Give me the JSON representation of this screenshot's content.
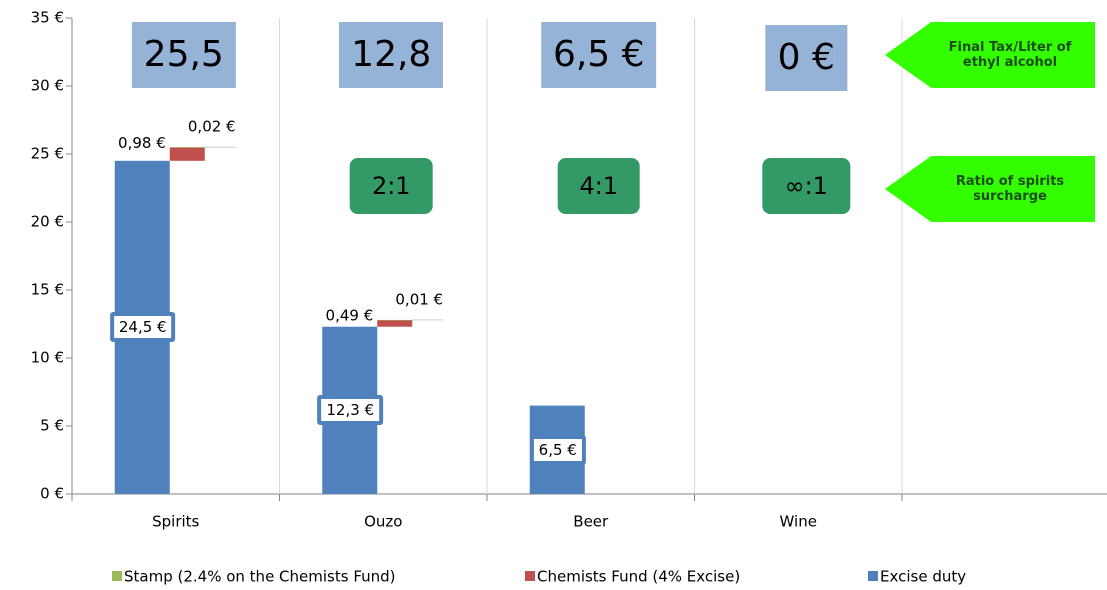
{
  "chart_data": {
    "type": "bar",
    "categories": [
      "Spirits",
      "Ouzo",
      "Beer",
      "Wine",
      null
    ],
    "series": [
      {
        "name": "Stamp (2.4% on the Chemists Fund)",
        "color": "#9bbb59",
        "values": [
          0.02,
          0.01,
          null,
          null,
          null
        ],
        "value_labels": [
          "0,02 €",
          "0,01 €",
          null,
          null,
          null
        ]
      },
      {
        "name": "Chemists Fund (4% Excise)",
        "color": "#c0504d",
        "values": [
          0.98,
          0.49,
          null,
          null,
          null
        ],
        "value_labels": [
          "0,98 €",
          "0,49 €",
          null,
          null,
          null
        ]
      },
      {
        "name": "Excise duty",
        "color": "#4f81bd",
        "values": [
          24.5,
          12.3,
          6.5,
          0,
          null
        ],
        "value_labels": [
          "24,5 €",
          "12,3 €",
          "6,5 €",
          null,
          null
        ]
      }
    ],
    "ylim": [
      0,
      35
    ],
    "yticks": [
      {
        "value": 0,
        "label": "0 €"
      },
      {
        "value": 5,
        "label": "5 €"
      },
      {
        "value": 10,
        "label": "10 €"
      },
      {
        "value": 15,
        "label": "15 €"
      },
      {
        "value": 20,
        "label": "20 €"
      },
      {
        "value": 25,
        "label": "25 €"
      },
      {
        "value": 30,
        "label": "30 €"
      },
      {
        "value": 35,
        "label": "35 €"
      }
    ],
    "legend": "bottom",
    "annotations": {
      "final_tax": {
        "title": "Final Tax/Liter of ethyl alcohol",
        "values": [
          25.5,
          12.8,
          6.5,
          0
        ],
        "value_labels": [
          "25,5",
          "12,8",
          "6,5 €",
          "0 €"
        ]
      },
      "ratio": {
        "title": "Ratio of spirits surcharge",
        "labels": [
          null,
          "2:1",
          "4:1",
          "∞:1"
        ]
      }
    }
  }
}
